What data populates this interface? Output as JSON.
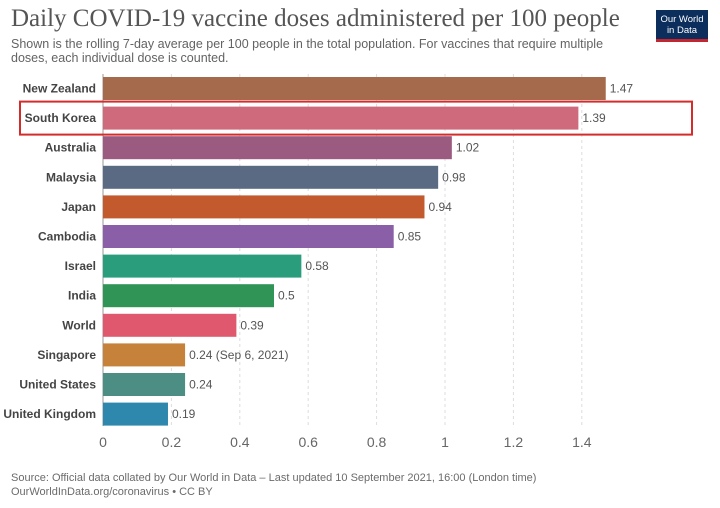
{
  "header": {
    "title": "Daily COVID-19 vaccine doses administered per 100 people",
    "subtitle": "Shown is the rolling 7-day average per 100 people in the total population. For vaccines that require multiple doses, each individual dose is counted."
  },
  "logo": {
    "line1": "Our World",
    "line2": "in Data"
  },
  "footer": {
    "source": "Source: Official data collated by Our World in Data – Last updated 10 September 2021, 16:00 (London time)",
    "license": "OurWorldInData.org/coronavirus • CC BY"
  },
  "chart_data": {
    "type": "bar",
    "orientation": "horizontal",
    "title": "Daily COVID-19 vaccine doses administered per 100 people",
    "xlabel": "",
    "ylabel": "",
    "xlim": [
      0,
      1.5
    ],
    "xticks": [
      0,
      0.2,
      0.4,
      0.6,
      0.8,
      1,
      1.2,
      1.4
    ],
    "xtick_labels": [
      "0",
      "0.2",
      "0.4",
      "0.6",
      "0.8",
      "1",
      "1.2",
      "1.4"
    ],
    "grid": "vertical dashed",
    "highlighted": "South Korea",
    "highlight_color": "#d42b2b",
    "bars": [
      {
        "label": "New Zealand",
        "value": 1.47,
        "value_label": "1.47",
        "color": "#a5694c"
      },
      {
        "label": "South Korea",
        "value": 1.39,
        "value_label": "1.39",
        "color": "#cf6a7c"
      },
      {
        "label": "Australia",
        "value": 1.02,
        "value_label": "1.02",
        "color": "#9b5a7f"
      },
      {
        "label": "Malaysia",
        "value": 0.98,
        "value_label": "0.98",
        "color": "#5a6a82"
      },
      {
        "label": "Japan",
        "value": 0.94,
        "value_label": "0.94",
        "color": "#c25a2e"
      },
      {
        "label": "Cambodia",
        "value": 0.85,
        "value_label": "0.85",
        "color": "#8a5fa8"
      },
      {
        "label": "Israel",
        "value": 0.58,
        "value_label": "0.58",
        "color": "#2a9d7c"
      },
      {
        "label": "India",
        "value": 0.5,
        "value_label": "0.5",
        "color": "#2f9455"
      },
      {
        "label": "World",
        "value": 0.39,
        "value_label": "0.39",
        "color": "#df586d"
      },
      {
        "label": "Singapore",
        "value": 0.24,
        "value_label": "0.24 (Sep 6, 2021)",
        "color": "#c6823a"
      },
      {
        "label": "United States",
        "value": 0.24,
        "value_label": "0.24",
        "color": "#4c8e84"
      },
      {
        "label": "United Kingdom",
        "value": 0.19,
        "value_label": "0.19",
        "color": "#2e87ad"
      }
    ]
  }
}
